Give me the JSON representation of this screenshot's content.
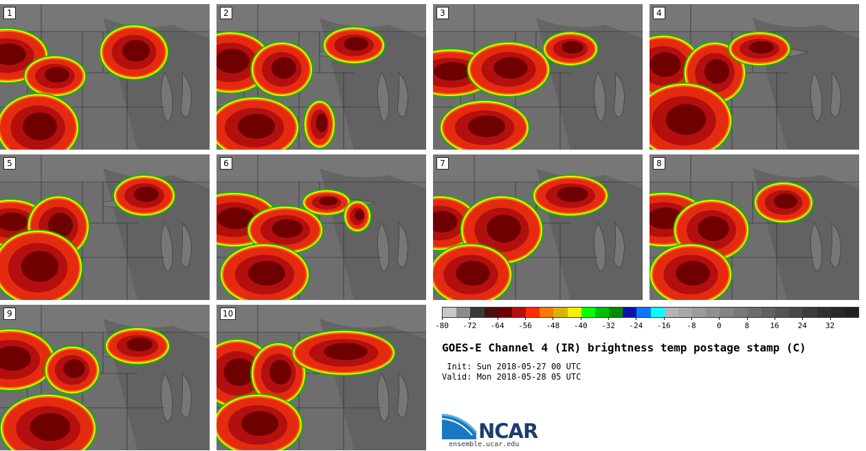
{
  "panels": [
    {
      "label": "1"
    },
    {
      "label": "2"
    },
    {
      "label": "3"
    },
    {
      "label": "4"
    },
    {
      "label": "5"
    },
    {
      "label": "6"
    },
    {
      "label": "7"
    },
    {
      "label": "8"
    },
    {
      "label": "9"
    },
    {
      "label": "10"
    }
  ],
  "colorbar": {
    "ticks": [
      "-80",
      "-72",
      "-64",
      "-56",
      "-48",
      "-40",
      "-32",
      "-24",
      "-16",
      "-8",
      "0",
      "8",
      "16",
      "24",
      "32"
    ],
    "colors": [
      "#c8c8c8",
      "#8c8c8c",
      "#3a3a3a",
      "#4a1010",
      "#6e0000",
      "#b40f0f",
      "#ff2a00",
      "#ff7800",
      "#d8b400",
      "#f0f000",
      "#00ff00",
      "#00c000",
      "#008a00",
      "#0a14a8",
      "#0a78ff",
      "#00ffff",
      "#b4b4b4",
      "#a8a8a8",
      "#9c9c9c",
      "#909090",
      "#848484",
      "#787878",
      "#6c6c6c",
      "#606060",
      "#545454",
      "#484848",
      "#3c3c3c",
      "#303030",
      "#282828",
      "#202020"
    ]
  },
  "title": "GOES-E Channel 4 (IR) brightness temp postage stamp (C)",
  "init": " Init: Sun 2018-05-27 00 UTC",
  "valid": "Valid: Mon 2018-05-28 05 UTC",
  "logo": {
    "name": "NCAR",
    "url": "ensemble.ucar.edu"
  }
}
